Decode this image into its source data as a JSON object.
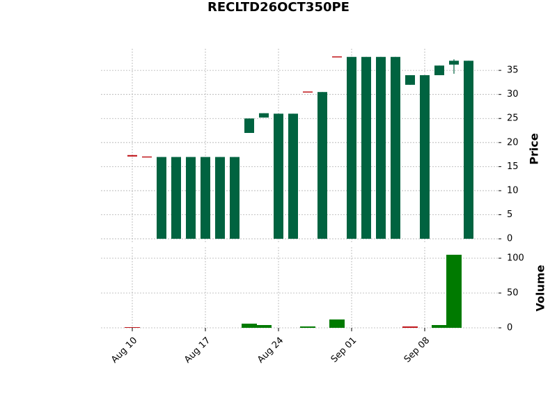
{
  "chart_data": {
    "type": "candlestick",
    "title": "RECLTD26OCT350PE",
    "categories": [
      "Aug 10",
      null,
      null,
      null,
      null,
      "Aug 17",
      null,
      null,
      null,
      null,
      "Aug 24",
      null,
      null,
      null,
      null,
      "Sep 01",
      null,
      null,
      null,
      null,
      "Sep 08",
      null,
      null,
      null
    ],
    "open": [
      17.4,
      17.0,
      0,
      0,
      0,
      0,
      0,
      0,
      22.0,
      25.2,
      0,
      0,
      30.5,
      0,
      37.8,
      0,
      0,
      0,
      0,
      32.0,
      0,
      34.0,
      36.2,
      0
    ],
    "high": [
      17.4,
      17.0,
      17.0,
      17.0,
      17.0,
      17.0,
      17.0,
      17.0,
      25.0,
      26.1,
      26.0,
      26.0,
      30.5,
      30.5,
      37.8,
      37.8,
      37.8,
      37.8,
      37.8,
      34.0,
      34.0,
      36.0,
      37.3,
      37.0
    ],
    "low": [
      17.1,
      17.0,
      0,
      0,
      0,
      0,
      0,
      0,
      22.0,
      25.2,
      0,
      0,
      30.5,
      0,
      37.8,
      0,
      0,
      0,
      0,
      32.0,
      0,
      34.0,
      34.3,
      0
    ],
    "close": [
      17.1,
      17.0,
      17.0,
      17.0,
      17.0,
      17.0,
      17.0,
      17.0,
      25.0,
      26.1,
      26.0,
      26.0,
      30.5,
      30.5,
      37.8,
      37.8,
      37.8,
      37.8,
      37.8,
      34.0,
      34.0,
      36.0,
      37.0,
      37.0
    ],
    "candle_colors": [
      "#c0161b",
      "#c0161b",
      "#006340",
      "#006340",
      "#006340",
      "#006340",
      "#006340",
      "#006340",
      "#006340",
      "#006340",
      "#006340",
      "#006340",
      "#c0161b",
      "#006340",
      "#c0161b",
      "#006340",
      "#006340",
      "#006340",
      "#006340",
      "#006340",
      "#006340",
      "#006340",
      "#006340",
      "#006340"
    ],
    "volume": [
      1,
      0,
      0,
      0,
      0,
      0,
      0,
      0,
      6,
      4,
      0,
      0,
      2,
      0,
      12,
      0,
      0,
      0,
      0,
      2,
      0,
      4,
      105,
      0
    ],
    "volume_colors": [
      "#c0161b",
      "#007a00",
      "#007a00",
      "#007a00",
      "#007a00",
      "#007a00",
      "#007a00",
      "#007a00",
      "#007a00",
      "#007a00",
      "#007a00",
      "#007a00",
      "#007a00",
      "#007a00",
      "#007a00",
      "#007a00",
      "#007a00",
      "#007a00",
      "#007a00",
      "#c0161b",
      "#007a00",
      "#007a00",
      "#007a00",
      "#007a00"
    ],
    "ylabel": "Price",
    "ylim": [
      -1,
      39.5
    ],
    "yticks": [
      0,
      5,
      10,
      15,
      20,
      25,
      30,
      35
    ],
    "y2label": "Volume",
    "y2lim": [
      0,
      116
    ],
    "y2ticks": [
      0,
      50,
      100
    ],
    "grid": true
  }
}
